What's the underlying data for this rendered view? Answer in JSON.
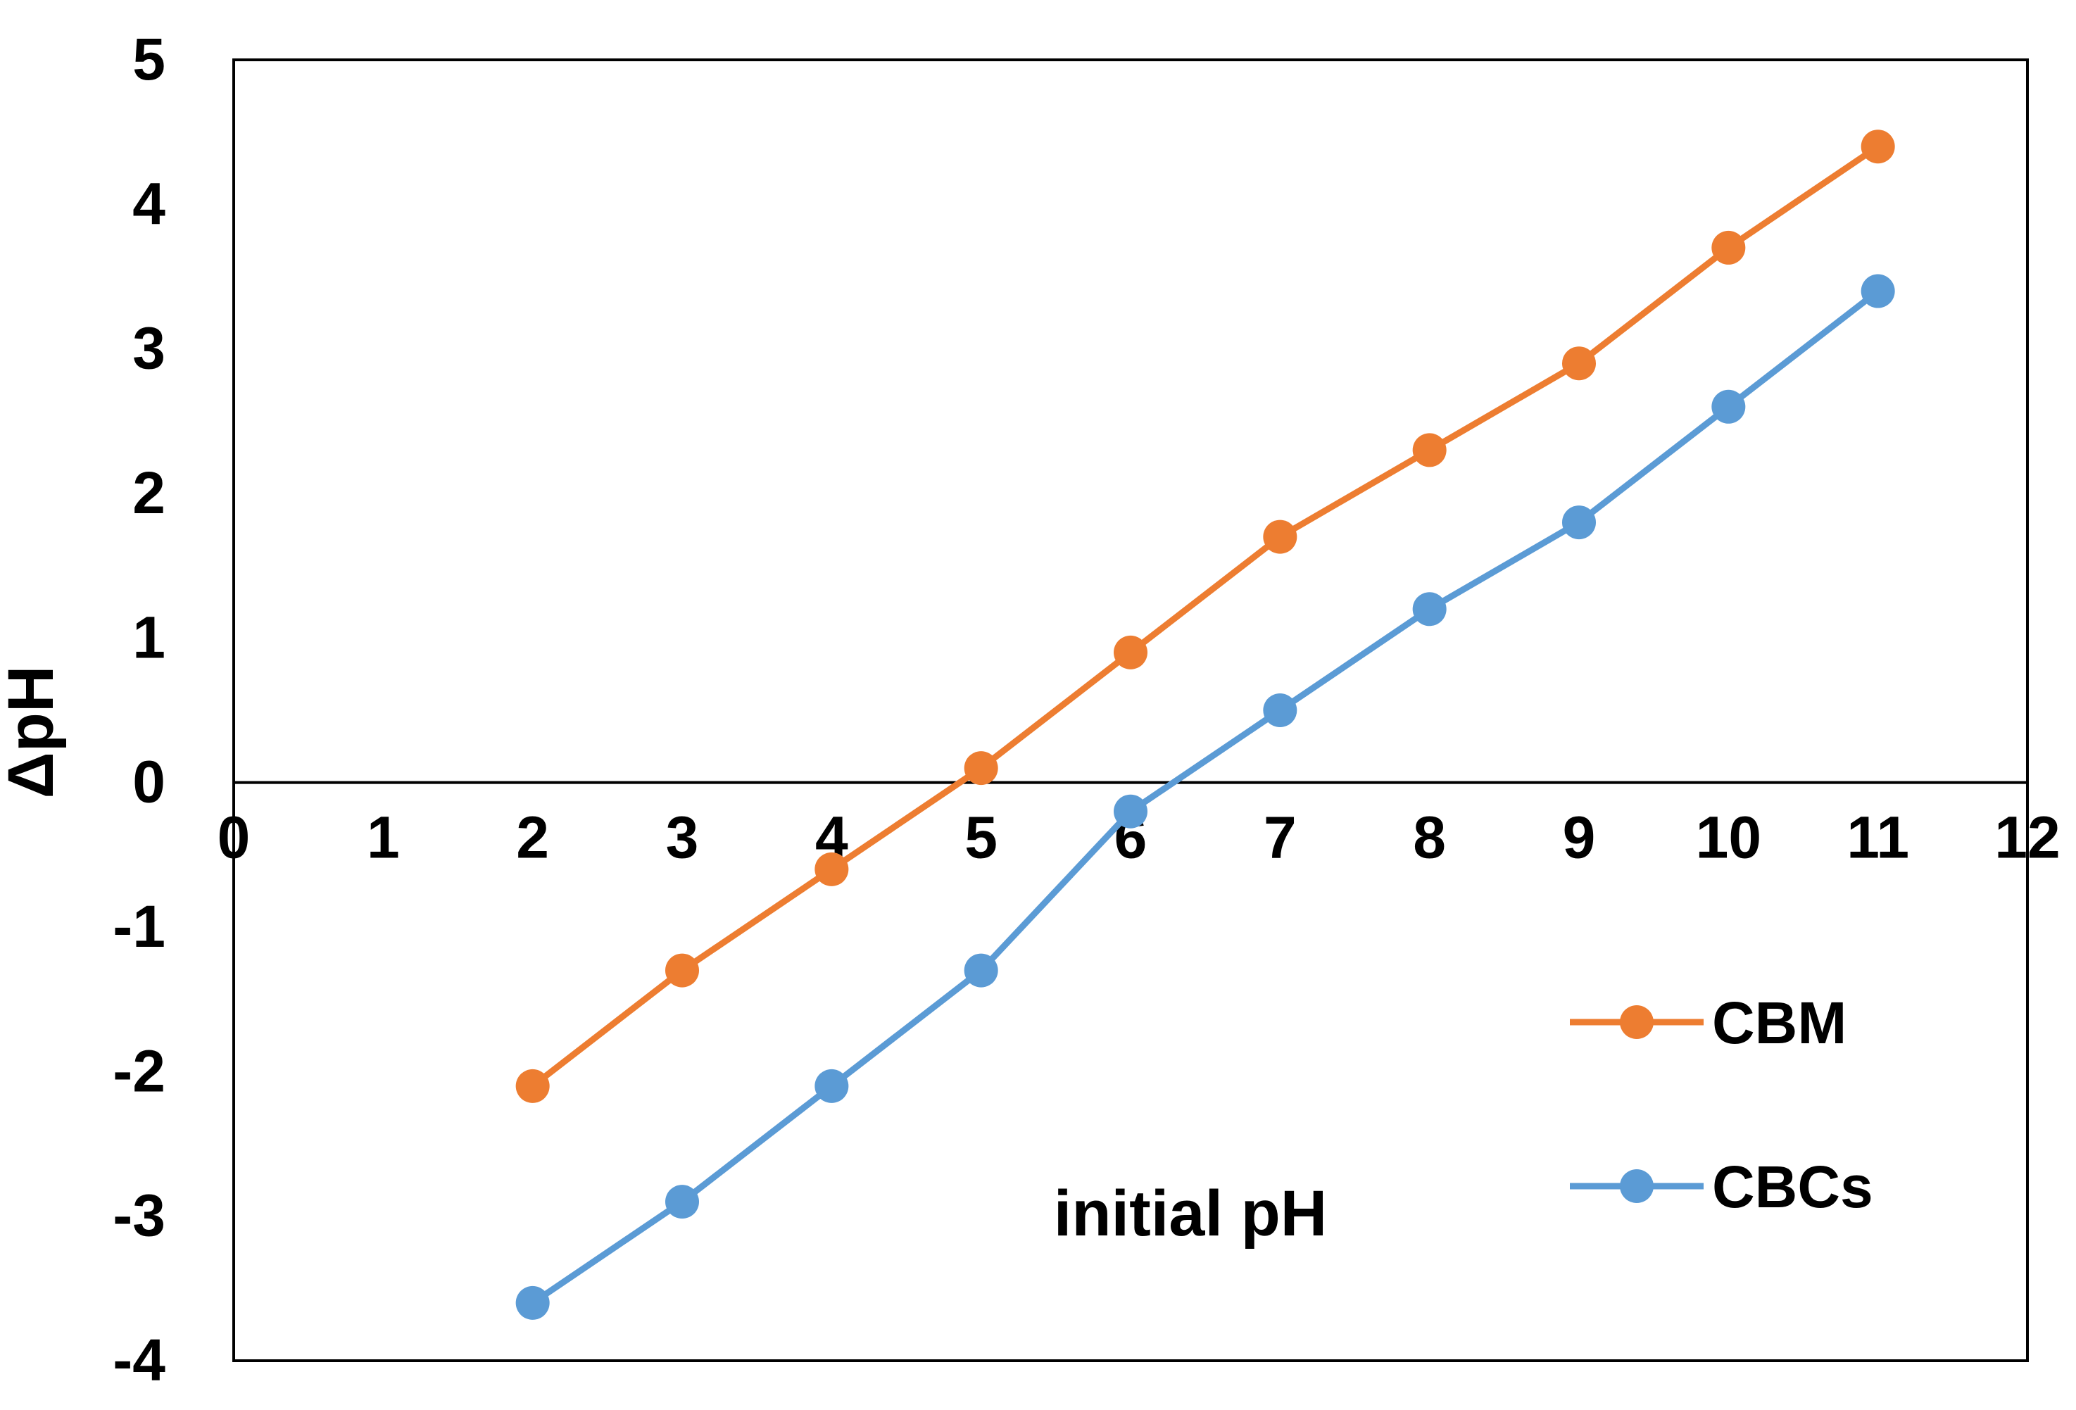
{
  "chart_data": {
    "type": "line",
    "title": "",
    "xlabel": "initial pH",
    "ylabel": "ΔpH",
    "xlim": [
      0,
      12
    ],
    "ylim": [
      -4,
      5
    ],
    "x_ticks": [
      0,
      1,
      2,
      3,
      4,
      5,
      6,
      7,
      8,
      9,
      10,
      11,
      12
    ],
    "y_ticks": [
      5,
      4,
      3,
      2,
      1,
      0,
      -1,
      -2,
      -3,
      -4
    ],
    "grid": false,
    "legend_position": "right",
    "series": [
      {
        "name": "CBM",
        "color": "#ED7D31",
        "marker": "circle",
        "x": [
          2,
          3,
          4,
          5,
          6,
          7,
          8,
          9,
          10,
          11
        ],
        "y": [
          -2.1,
          -1.3,
          -0.6,
          0.1,
          0.9,
          1.7,
          2.3,
          2.9,
          3.7,
          4.4
        ]
      },
      {
        "name": "CBCs",
        "color": "#5B9BD5",
        "marker": "circle",
        "x": [
          2,
          3,
          4,
          5,
          6,
          7,
          8,
          9,
          10,
          11
        ],
        "y": [
          -3.6,
          -2.9,
          -2.1,
          -1.3,
          -0.2,
          0.5,
          1.2,
          1.8,
          2.6,
          3.4
        ]
      }
    ]
  }
}
